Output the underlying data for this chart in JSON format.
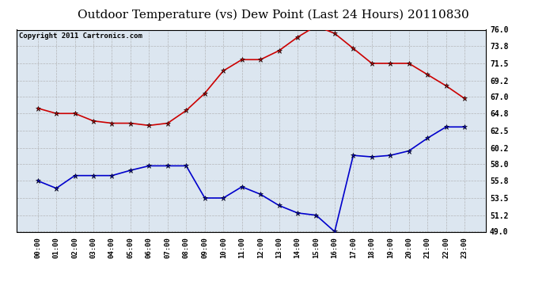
{
  "title": "Outdoor Temperature (vs) Dew Point (Last 24 Hours) 20110830",
  "copyright": "Copyright 2011 Cartronics.com",
  "x_labels": [
    "00:00",
    "01:00",
    "02:00",
    "03:00",
    "04:00",
    "05:00",
    "06:00",
    "07:00",
    "08:00",
    "09:00",
    "10:00",
    "11:00",
    "12:00",
    "13:00",
    "14:00",
    "15:00",
    "16:00",
    "17:00",
    "18:00",
    "19:00",
    "20:00",
    "21:00",
    "22:00",
    "23:00"
  ],
  "temp_data": [
    65.5,
    64.8,
    64.8,
    63.8,
    63.5,
    63.5,
    63.2,
    63.5,
    65.2,
    67.5,
    70.5,
    72.0,
    72.0,
    73.2,
    75.0,
    76.5,
    75.5,
    73.5,
    71.5,
    71.5,
    71.5,
    70.0,
    68.5,
    66.8
  ],
  "dew_data": [
    55.8,
    54.8,
    56.5,
    56.5,
    56.5,
    57.2,
    57.8,
    57.8,
    57.8,
    53.5,
    53.5,
    55.0,
    54.0,
    52.5,
    51.5,
    51.2,
    49.0,
    59.2,
    59.0,
    59.2,
    59.8,
    61.5,
    63.0,
    63.0
  ],
  "temp_color": "#cc0000",
  "dew_color": "#0000cc",
  "bg_color": "#ffffff",
  "plot_bg_color": "#dce6f0",
  "grid_color": "#aaaaaa",
  "ylim": [
    49.0,
    76.0
  ],
  "yticks": [
    49.0,
    51.2,
    53.5,
    55.8,
    58.0,
    60.2,
    62.5,
    64.8,
    67.0,
    69.2,
    71.5,
    73.8,
    76.0
  ],
  "title_fontsize": 11,
  "copyright_fontsize": 6.5
}
